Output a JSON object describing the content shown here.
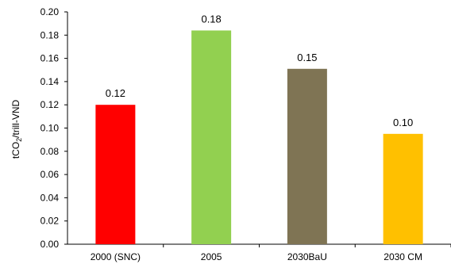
{
  "chart_data": {
    "type": "bar",
    "categories": [
      "2000 (SNC)",
      "2005",
      "2030BaU",
      "2030 CM"
    ],
    "values": [
      0.12,
      0.184,
      0.151,
      0.095
    ],
    "data_labels": [
      "0.12",
      "0.18",
      "0.15",
      "0.10"
    ],
    "bar_colors": [
      "#ff0000",
      "#92d050",
      "#7f7454",
      "#ffc000"
    ],
    "title": "",
    "xlabel": "",
    "ylabel": "tCO2/trill-VND",
    "ylim": [
      0,
      0.2
    ],
    "yticks": [
      "0.00",
      "0.02",
      "0.04",
      "0.06",
      "0.08",
      "0.10",
      "0.12",
      "0.14",
      "0.16",
      "0.18",
      "0.20"
    ],
    "grid": false,
    "legend": "none"
  }
}
